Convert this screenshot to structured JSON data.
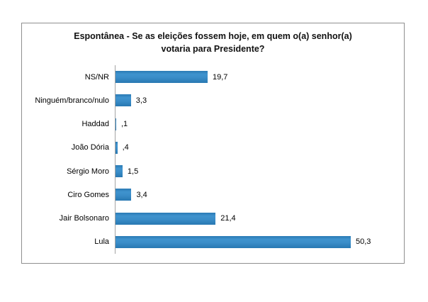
{
  "chart_data": {
    "type": "bar",
    "orientation": "horizontal",
    "title": "Espontânea - Se as eleições fossem hoje, em quem o(a) senhor(a) votaria para Presidente?",
    "title_line1": "Espontânea - Se as eleições fossem hoje, em quem o(a) senhor(a)",
    "title_line2": "votaria para Presidente?",
    "categories": [
      "NS/NR",
      "Ninguém/branco/nulo",
      "Haddad",
      "João Dória",
      "Sérgio Moro",
      "Ciro Gomes",
      "Jair Bolsonaro",
      "Lula"
    ],
    "values": [
      19.7,
      3.3,
      0.1,
      0.4,
      1.5,
      3.4,
      21.4,
      50.3
    ],
    "value_labels": [
      "19,7",
      "3,3",
      ",1",
      ",4",
      "1,5",
      "3,4",
      "21,4",
      "50,3"
    ],
    "xlabel": "",
    "ylabel": "",
    "xlim": [
      0,
      55
    ],
    "grid": false,
    "legend": false,
    "bar_color": "#2e82bf",
    "axis_line_color": "#a3a3a3",
    "frame_border_color": "#8f8f8f"
  }
}
